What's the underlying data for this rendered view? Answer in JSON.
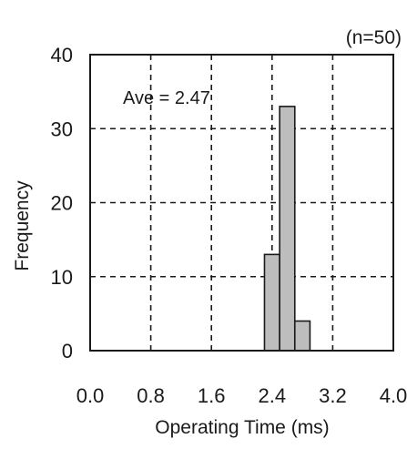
{
  "chart_data": {
    "type": "bar",
    "sample_size_label": "(n=50)",
    "annotation": "Ave = 2.47",
    "xlabel": "Operating Time (ms)",
    "ylabel": "Frequency",
    "xlim": [
      0.0,
      4.0
    ],
    "ylim": [
      0,
      40
    ],
    "x_ticks": [
      "0.0",
      "0.8",
      "1.6",
      "2.4",
      "3.2",
      "4.0"
    ],
    "y_ticks": [
      "0",
      "10",
      "20",
      "30",
      "40"
    ],
    "bins": [
      {
        "x0": 2.3,
        "x1": 2.5,
        "value": 13
      },
      {
        "x0": 2.5,
        "x1": 2.7,
        "value": 33
      },
      {
        "x0": 2.7,
        "x1": 2.9,
        "value": 4
      }
    ],
    "grid": true,
    "bar_color": "#bdbdbd",
    "edge_color": "#1a1a1a"
  }
}
